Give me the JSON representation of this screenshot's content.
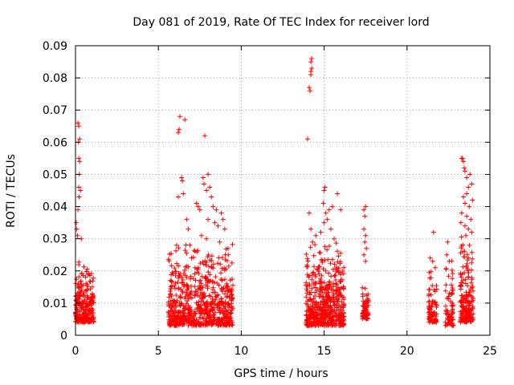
{
  "chart_data": {
    "type": "scatter",
    "title": "Day 081 of 2019, Rate Of TEC Index for receiver lord",
    "xlabel": "GPS time / hours",
    "ylabel": "ROTI / TECUs",
    "xlim": [
      0,
      25
    ],
    "ylim": [
      0,
      0.09
    ],
    "xticks": [
      0,
      5,
      10,
      15,
      20,
      25
    ],
    "xtick_labels": [
      "0",
      "5",
      "10",
      "15",
      "20",
      "25"
    ],
    "yticks": [
      0,
      0.01,
      0.02,
      0.03,
      0.04,
      0.05,
      0.06,
      0.07,
      0.08,
      0.09
    ],
    "ytick_labels": [
      "0",
      "0.01",
      "0.02",
      "0.03",
      "0.04",
      "0.05",
      "0.06",
      "0.07",
      "0.08",
      "0.09"
    ],
    "grid": true,
    "marker": "+",
    "color": "#ff0000",
    "series": [
      {
        "name": "ROTI",
        "clusters": [
          {
            "x_range": [
              0.0,
              1.1
            ],
            "y_range": [
              0.004,
              0.025
            ],
            "count": 260
          },
          {
            "x_range": [
              5.6,
              9.5
            ],
            "y_range": [
              0.003,
              0.03
            ],
            "count": 700
          },
          {
            "x_range": [
              13.9,
              16.2
            ],
            "y_range": [
              0.003,
              0.03
            ],
            "count": 520
          },
          {
            "x_range": [
              17.3,
              17.7
            ],
            "y_range": [
              0.005,
              0.016
            ],
            "count": 60
          },
          {
            "x_range": [
              21.3,
              21.8
            ],
            "y_range": [
              0.004,
              0.022
            ],
            "count": 80
          },
          {
            "x_range": [
              22.3,
              22.8
            ],
            "y_range": [
              0.003,
              0.025
            ],
            "count": 70
          },
          {
            "x_range": [
              23.2,
              24.0
            ],
            "y_range": [
              0.004,
              0.035
            ],
            "count": 180
          }
        ],
        "points": [
          [
            0.05,
            0.035
          ],
          [
            0.08,
            0.033
          ],
          [
            0.12,
            0.031
          ],
          [
            0.15,
            0.039
          ],
          [
            0.2,
            0.046
          ],
          [
            0.22,
            0.043
          ],
          [
            0.15,
            0.066
          ],
          [
            0.2,
            0.065
          ],
          [
            0.18,
            0.06
          ],
          [
            0.25,
            0.061
          ],
          [
            0.2,
            0.055
          ],
          [
            0.25,
            0.054
          ],
          [
            0.23,
            0.05
          ],
          [
            0.3,
            0.045
          ],
          [
            0.35,
            0.03
          ],
          [
            6.2,
            0.063
          ],
          [
            6.25,
            0.064
          ],
          [
            6.3,
            0.068
          ],
          [
            6.6,
            0.067
          ],
          [
            6.4,
            0.049
          ],
          [
            6.45,
            0.048
          ],
          [
            6.2,
            0.043
          ],
          [
            6.5,
            0.044
          ],
          [
            6.7,
            0.036
          ],
          [
            6.8,
            0.033
          ],
          [
            6.1,
            0.028
          ],
          [
            7.3,
            0.041
          ],
          [
            7.4,
            0.04
          ],
          [
            7.5,
            0.039
          ],
          [
            7.8,
            0.062
          ],
          [
            7.7,
            0.049
          ],
          [
            7.75,
            0.047
          ],
          [
            7.9,
            0.045
          ],
          [
            8.0,
            0.05
          ],
          [
            8.1,
            0.046
          ],
          [
            8.2,
            0.043
          ],
          [
            8.3,
            0.04
          ],
          [
            8.5,
            0.039
          ],
          [
            8.0,
            0.036
          ],
          [
            8.4,
            0.035
          ],
          [
            8.6,
            0.034
          ],
          [
            8.8,
            0.038
          ],
          [
            8.9,
            0.036
          ],
          [
            9.0,
            0.033
          ],
          [
            7.6,
            0.031
          ],
          [
            7.9,
            0.03
          ],
          [
            8.7,
            0.029
          ],
          [
            9.2,
            0.027
          ],
          [
            14.0,
            0.061
          ],
          [
            14.1,
            0.077
          ],
          [
            14.15,
            0.076
          ],
          [
            14.2,
            0.082
          ],
          [
            14.25,
            0.083
          ],
          [
            14.2,
            0.085
          ],
          [
            14.25,
            0.086
          ],
          [
            14.2,
            0.081
          ],
          [
            14.1,
            0.038
          ],
          [
            14.2,
            0.033
          ],
          [
            14.3,
            0.029
          ],
          [
            14.5,
            0.031
          ],
          [
            14.8,
            0.032
          ],
          [
            15.0,
            0.045
          ],
          [
            15.05,
            0.046
          ],
          [
            14.95,
            0.041
          ],
          [
            15.1,
            0.038
          ],
          [
            15.2,
            0.036
          ],
          [
            15.3,
            0.039
          ],
          [
            15.0,
            0.035
          ],
          [
            15.4,
            0.033
          ],
          [
            15.5,
            0.04
          ],
          [
            15.8,
            0.044
          ],
          [
            16.0,
            0.039
          ],
          [
            15.6,
            0.03
          ],
          [
            17.4,
            0.039
          ],
          [
            17.5,
            0.04
          ],
          [
            17.45,
            0.037
          ],
          [
            17.4,
            0.033
          ],
          [
            17.5,
            0.031
          ],
          [
            17.45,
            0.029
          ],
          [
            17.55,
            0.027
          ],
          [
            17.4,
            0.025
          ],
          [
            17.5,
            0.023
          ],
          [
            21.6,
            0.032
          ],
          [
            21.4,
            0.024
          ],
          [
            21.55,
            0.023
          ],
          [
            21.7,
            0.021
          ],
          [
            22.45,
            0.029
          ],
          [
            22.4,
            0.025
          ],
          [
            22.55,
            0.023
          ],
          [
            23.3,
            0.055
          ],
          [
            23.35,
            0.055
          ],
          [
            23.4,
            0.054
          ],
          [
            23.45,
            0.052
          ],
          [
            23.5,
            0.051
          ],
          [
            23.6,
            0.049
          ],
          [
            23.7,
            0.046
          ],
          [
            23.8,
            0.05
          ],
          [
            23.9,
            0.047
          ],
          [
            23.6,
            0.044
          ],
          [
            23.4,
            0.043
          ],
          [
            23.5,
            0.041
          ],
          [
            23.75,
            0.04
          ],
          [
            23.95,
            0.042
          ],
          [
            23.3,
            0.038
          ],
          [
            23.6,
            0.037
          ],
          [
            23.85,
            0.036
          ],
          [
            23.25,
            0.035
          ],
          [
            23.5,
            0.034
          ],
          [
            23.7,
            0.033
          ],
          [
            23.9,
            0.032
          ],
          [
            23.55,
            0.031
          ]
        ]
      }
    ]
  }
}
